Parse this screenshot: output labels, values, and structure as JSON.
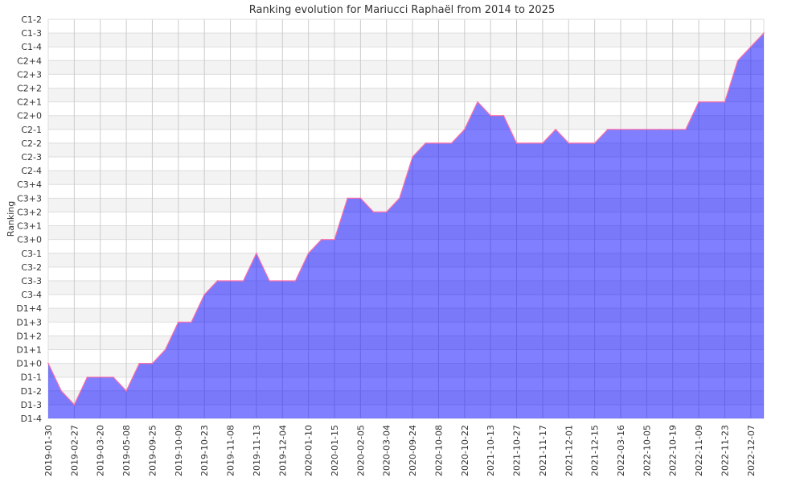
{
  "chart_data": {
    "type": "area",
    "title": "Ranking evolution for Mariucci Raphaël from 2014 to 2025",
    "xlabel": "",
    "ylabel": "Ranking",
    "y_categories": [
      "D1-4",
      "D1-3",
      "D1-2",
      "D1-1",
      "D1+0",
      "D1+1",
      "D1+2",
      "D1+3",
      "D1+4",
      "C3-4",
      "C3-3",
      "C3-2",
      "C3-1",
      "C3+0",
      "C3+1",
      "C3+2",
      "C3+3",
      "C3+4",
      "C2-4",
      "C2-3",
      "C2-2",
      "C2-1",
      "C2+0",
      "C2+1",
      "C2+2",
      "C2+3",
      "C2+4",
      "C1-4",
      "C1-3",
      "C1-2"
    ],
    "x_tick_labels": [
      "2019-01-30",
      "2019-02-27",
      "2019-03-20",
      "2019-05-08",
      "2019-09-25",
      "2019-10-09",
      "2019-10-23",
      "2019-11-08",
      "2019-11-13",
      "2019-12-04",
      "2020-01-10",
      "2020-01-15",
      "2020-02-05",
      "2020-03-04",
      "2020-09-24",
      "2020-10-08",
      "2020-10-22",
      "2021-10-13",
      "2021-10-27",
      "2021-11-17",
      "2021-12-01",
      "2021-12-15",
      "2022-03-16",
      "2022-10-05",
      "2022-10-19",
      "2022-11-09",
      "2022-11-23",
      "2022-12-07"
    ],
    "values": [
      "D1+0",
      "D1-2",
      "D1-3",
      "D1-1",
      "D1-1",
      "D1-1",
      "D1-2",
      "D1+0",
      "D1+0",
      "D1+1",
      "D1+3",
      "D1+3",
      "C3-4",
      "C3-3",
      "C3-3",
      "C3-3",
      "C3-1",
      "C3-3",
      "C3-3",
      "C3-3",
      "C3-1",
      "C3+0",
      "C3+0",
      "C3+3",
      "C3+3",
      "C3+2",
      "C3+2",
      "C3+3",
      "C2-3",
      "C2-2",
      "C2-2",
      "C2-2",
      "C2-1",
      "C2+1",
      "C2+0",
      "C2+0",
      "C2-2",
      "C2-2",
      "C2-2",
      "C2-1",
      "C2-2",
      "C2-2",
      "C2-2",
      "C2-1",
      "C2-1",
      "C2-1",
      "C2-1",
      "C2-1",
      "C2-1",
      "C2-1",
      "C2+1",
      "C2+1",
      "C2+1",
      "C2+4",
      "C1-4",
      "C1-3"
    ],
    "grid": true,
    "legend": "none",
    "colors": {
      "fill": "#0000ff",
      "line": "#ff6fa8",
      "band": "#f3f3f3",
      "grid": "#cccccc"
    }
  }
}
